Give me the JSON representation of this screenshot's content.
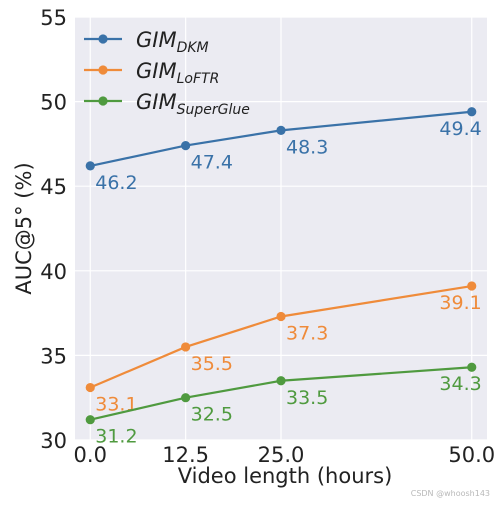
{
  "watermark": "CSDN @whoosh143",
  "chart_data": {
    "type": "line",
    "x": [
      0.0,
      12.5,
      25.0,
      50.0
    ],
    "xtick_labels": [
      "0.0",
      "12.5",
      "25.0",
      "50.0"
    ],
    "xlabel": "Video length (hours)",
    "ylabel": "AUC@5° (%)",
    "xlim": [
      -2,
      52
    ],
    "ylim": [
      30,
      55
    ],
    "yticks": [
      30,
      35,
      40,
      45,
      50,
      55
    ],
    "grid": true,
    "background": "#ebebf2",
    "legend_position": "top-left",
    "series": [
      {
        "name": "GIM",
        "name_subscript": "DKM",
        "color": "#3a72a8",
        "values": [
          46.2,
          47.4,
          48.3,
          49.4
        ],
        "labels": [
          "46.2",
          "47.4",
          "48.3",
          "49.4"
        ]
      },
      {
        "name": "GIM",
        "name_subscript": "LoFTR",
        "color": "#ef8b3a",
        "values": [
          33.1,
          35.5,
          37.3,
          39.1
        ],
        "labels": [
          "33.1",
          "35.5",
          "37.3",
          "39.1"
        ]
      },
      {
        "name": "GIM",
        "name_subscript": "SuperGlue",
        "color": "#4f9a3f",
        "values": [
          31.2,
          32.5,
          33.5,
          34.3
        ],
        "labels": [
          "31.2",
          "32.5",
          "33.5",
          "34.3"
        ]
      }
    ]
  }
}
